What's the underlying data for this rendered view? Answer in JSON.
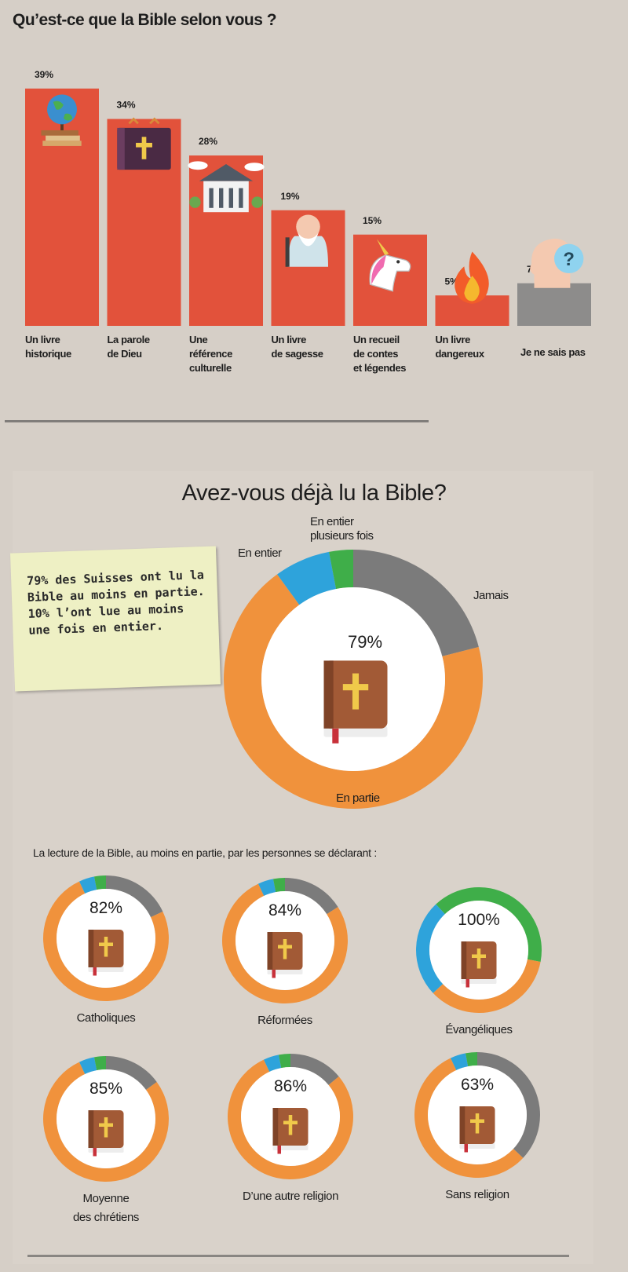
{
  "chart_data": [
    {
      "type": "bar",
      "title": "Qu’est-ce que la Bible selon vous ?",
      "categories": [
        "Un livre\nhistorique",
        "La parole\nde Dieu",
        "Une\nréférence\nculturelle",
        "Un livre\nde sagesse",
        "Un recueil\nde contes\net légendes",
        "Un livre\ndangereux",
        "Je ne sais pas"
      ],
      "values": [
        39,
        34,
        28,
        19,
        15,
        5,
        7
      ],
      "value_labels": [
        "39%",
        "34%",
        "28%",
        "19%",
        "15%",
        "5%",
        "7%"
      ],
      "icons": [
        "globe-books-icon",
        "holy-book-icon",
        "monument-icon",
        "sage-icon",
        "unicorn-icon",
        "flame-icon",
        "question-head-icon"
      ],
      "colors": [
        "#e2523b",
        "#e2523b",
        "#e2523b",
        "#e2523b",
        "#e2523b",
        "#e2523b",
        "#8d8c8b"
      ],
      "ylim": [
        0,
        40
      ]
    },
    {
      "type": "pie",
      "title": "Avez-vous déjà lu la Bible?",
      "center_label": "79%",
      "slices": [
        {
          "label": "En entier",
          "value": 7,
          "color": "#2ea3db"
        },
        {
          "label": "En entier\nplusieurs fois",
          "value": 3,
          "color": "#3fae49"
        },
        {
          "label": "Jamais",
          "value": 21,
          "color": "#7b7b7b"
        },
        {
          "label": "En partie",
          "value": 69,
          "color": "#f0923c"
        }
      ]
    },
    {
      "type": "pie",
      "title": "La lecture de la Bible, au moins en partie, par les personnes se déclarant :",
      "groups": [
        {
          "name": "Catholiques",
          "pct_label": "82%",
          "value": 82
        },
        {
          "name": "Réformées",
          "pct_label": "84%",
          "value": 84
        },
        {
          "name": "Évangéliques",
          "pct_label": "100%",
          "value": 100
        },
        {
          "name": "Moyenne\ndes chrétiens",
          "pct_label": "85%",
          "value": 85
        },
        {
          "name": "D’une autre religion",
          "pct_label": "86%",
          "value": 86
        },
        {
          "name": "Sans religion",
          "pct_label": "63%",
          "value": 63
        }
      ]
    }
  ],
  "note": "79% des Suisses ont lu la Bible au moins en partie. 10% l’ont lue au moins une fois en entier.",
  "colors": {
    "bar": "#e2523b",
    "bar_unknown": "#8d8c8b",
    "orange": "#f0923c",
    "blue": "#2ea3db",
    "green": "#3fae49",
    "grey": "#7b7b7b",
    "book": "#a25a36"
  }
}
